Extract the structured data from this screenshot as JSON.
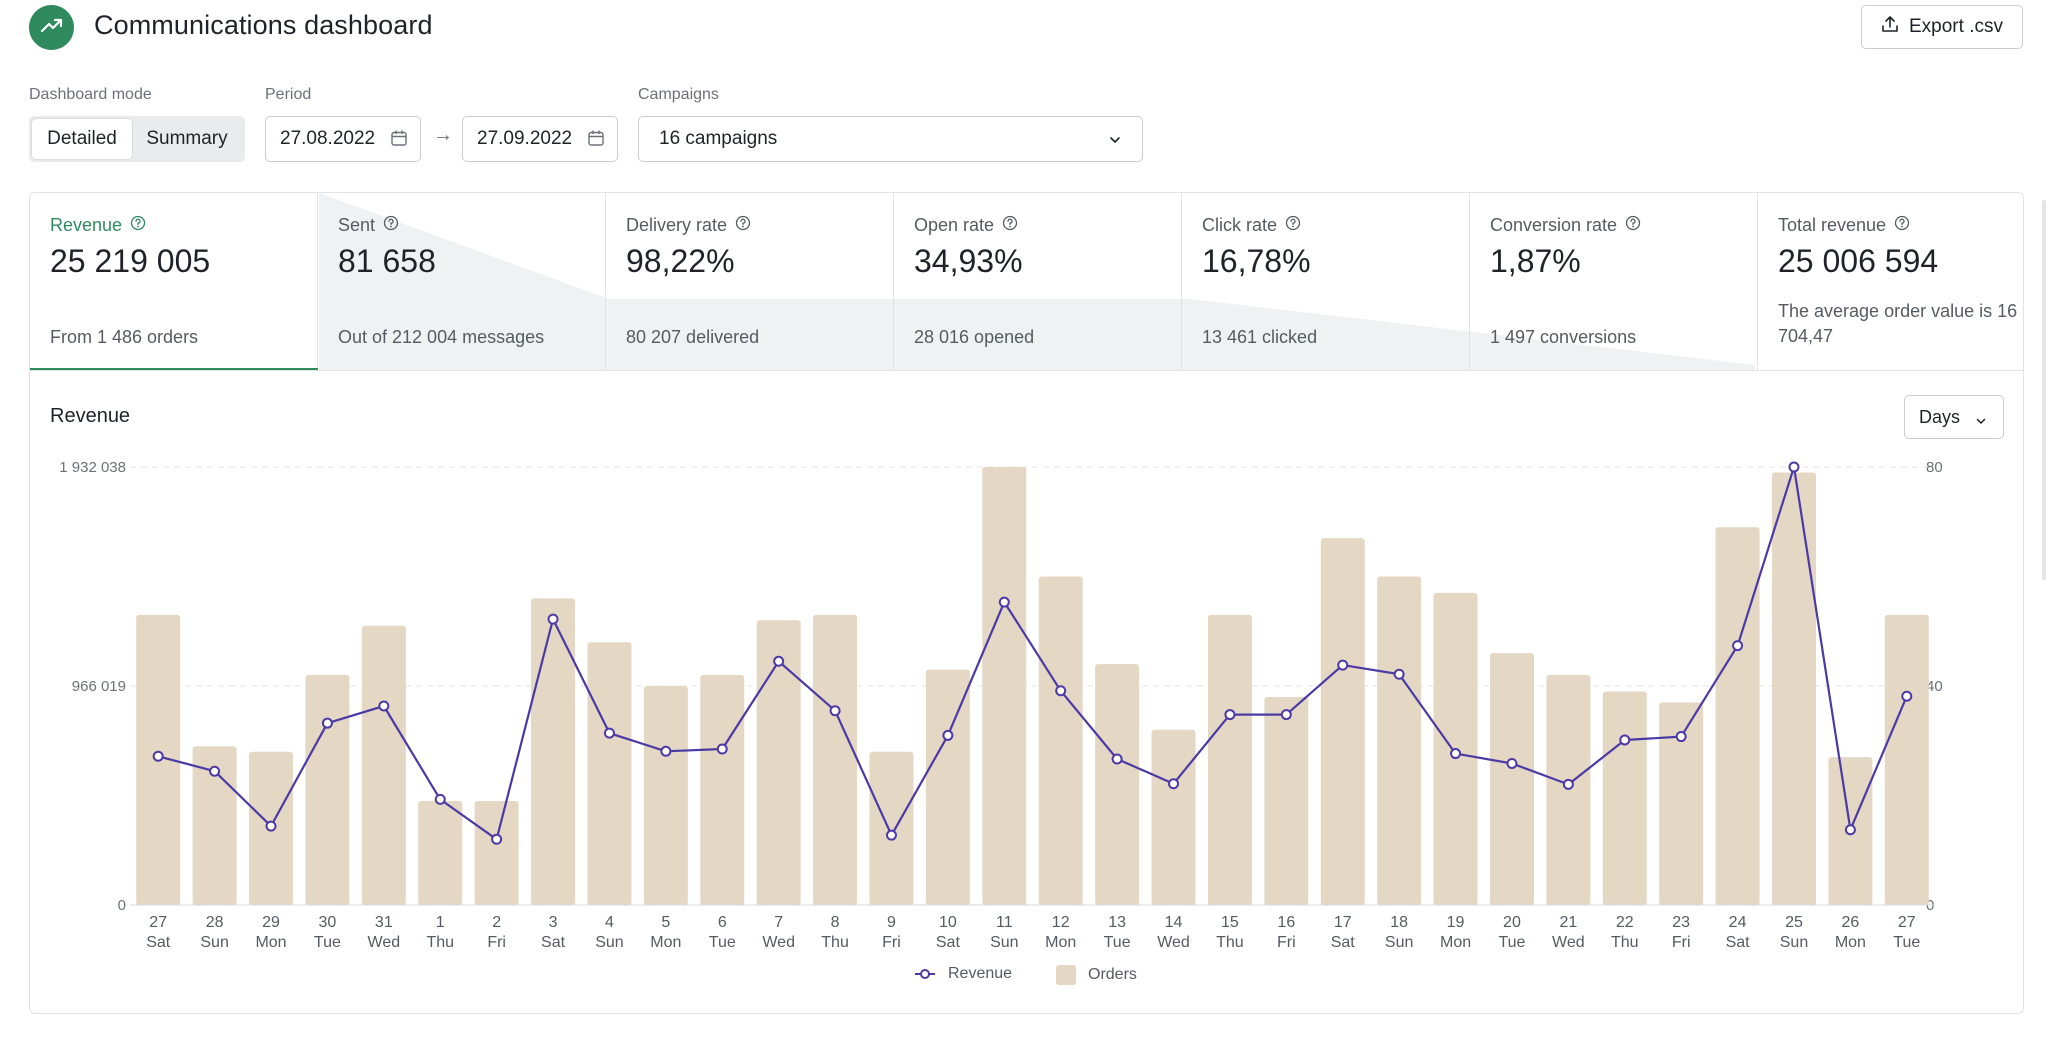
{
  "header": {
    "title": "Communications dashboard",
    "export_label": "Export .csv"
  },
  "controls": {
    "mode_label": "Dashboard mode",
    "mode_options": [
      "Detailed",
      "Summary"
    ],
    "mode_selected": "Detailed",
    "period_label": "Period",
    "date_from": "27.08.2022",
    "date_to": "27.09.2022",
    "campaigns_label": "Campaigns",
    "campaigns_value": "16 campaigns"
  },
  "kpis": [
    {
      "label": "Revenue",
      "value": "25 219 005",
      "sub": "From 1 486 orders"
    },
    {
      "label": "Sent",
      "value": "81 658",
      "sub": "Out of 212 004 messages"
    },
    {
      "label": "Delivery rate",
      "value": "98,22%",
      "sub": "80 207 delivered"
    },
    {
      "label": "Open rate",
      "value": "34,93%",
      "sub": "28 016 opened"
    },
    {
      "label": "Click rate",
      "value": "16,78%",
      "sub": "13 461 clicked"
    },
    {
      "label": "Conversion rate",
      "value": "1,87%",
      "sub": "1 497 conversions"
    },
    {
      "label": "Total revenue",
      "value": "25 006 594",
      "sub": "The average order value is 16 704,47"
    }
  ],
  "colors": {
    "accent": "#2f8a5e",
    "revenue_line": "#4b3aa6",
    "orders_bar": "#e4d7c4",
    "funnel_fill": "#eef2f3"
  },
  "chart": {
    "title": "Revenue",
    "granularity": "Days"
  },
  "chart_data": {
    "type": "bar",
    "title": "Revenue",
    "categories": [
      "27",
      "28",
      "29",
      "30",
      "31",
      "1",
      "2",
      "3",
      "4",
      "5",
      "6",
      "7",
      "8",
      "9",
      "10",
      "11",
      "12",
      "13",
      "14",
      "15",
      "16",
      "17",
      "18",
      "19",
      "20",
      "21",
      "22",
      "23",
      "24",
      "25",
      "26",
      "27"
    ],
    "weekdays": [
      "Sat",
      "Sun",
      "Mon",
      "Tue",
      "Wed",
      "Thu",
      "Fri",
      "Sat",
      "Sun",
      "Mon",
      "Tue",
      "Wed",
      "Thu",
      "Fri",
      "Sat",
      "Sun",
      "Mon",
      "Tue",
      "Wed",
      "Thu",
      "Fri",
      "Sat",
      "Sun",
      "Mon",
      "Tue",
      "Wed",
      "Thu",
      "Fri",
      "Sat",
      "Sun",
      "Mon",
      "Tue"
    ],
    "series": [
      {
        "name": "Orders",
        "kind": "bar",
        "axis": "right",
        "values": [
          53,
          29,
          28,
          42,
          51,
          19,
          19,
          56,
          48,
          40,
          42,
          52,
          53,
          28,
          43,
          80,
          60,
          44,
          32,
          53,
          38,
          67,
          60,
          57,
          46,
          42,
          39,
          37,
          69,
          79,
          27,
          53
        ]
      },
      {
        "name": "Revenue",
        "kind": "line",
        "axis": "left",
        "values": [
          656000,
          590000,
          348000,
          802000,
          878000,
          466000,
          290000,
          1261000,
          758000,
          678000,
          688000,
          1075000,
          857000,
          308000,
          748000,
          1336000,
          945000,
          644000,
          535000,
          840000,
          840000,
          1058000,
          1018000,
          668000,
          624000,
          532000,
          728000,
          743000,
          1144000,
          1932038,
          332000,
          921000
        ]
      }
    ],
    "y_left_ticks": [
      "0",
      "966 019",
      "1 932 038"
    ],
    "y_right_ticks": [
      "0",
      "40",
      "80"
    ],
    "ylim_left": [
      0,
      1932038
    ],
    "ylim_right": [
      0,
      80
    ],
    "grid": true,
    "legend_position": "bottom-center"
  }
}
